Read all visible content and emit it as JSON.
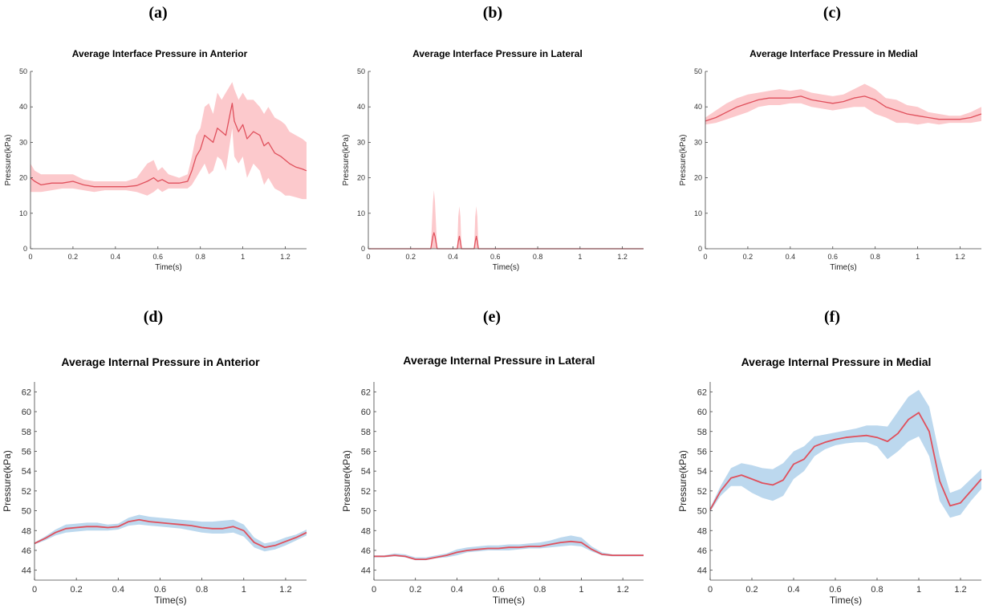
{
  "chart_data": [
    {
      "panel": "(a)",
      "type": "line",
      "title": "Average Interface Pressure in Anterior",
      "xlabel": "Time(s)",
      "ylabel": "Pressure(kPa)",
      "xlim": [
        0,
        1.3
      ],
      "ylim": [
        0,
        50
      ],
      "xticks": [
        "0",
        "0.2",
        "0.4",
        "0.6",
        "0.8",
        "1",
        "1.2"
      ],
      "yticks": [
        "0",
        "10",
        "20",
        "30",
        "40",
        "50"
      ],
      "colors": {
        "line": "#e0505c",
        "band": "#fcc9cc"
      },
      "series": [
        {
          "x": [
            0,
            0.02,
            0.05,
            0.1,
            0.15,
            0.2,
            0.25,
            0.3,
            0.35,
            0.4,
            0.45,
            0.5,
            0.55,
            0.58,
            0.6,
            0.62,
            0.65,
            0.7,
            0.74,
            0.76,
            0.78,
            0.8,
            0.82,
            0.84,
            0.86,
            0.88,
            0.9,
            0.92,
            0.94,
            0.95,
            0.96,
            0.98,
            1.0,
            1.02,
            1.05,
            1.08,
            1.1,
            1.12,
            1.15,
            1.18,
            1.2,
            1.22,
            1.25,
            1.28,
            1.3
          ],
          "values": [
            20,
            19,
            18,
            18.5,
            18.5,
            19,
            18,
            17.5,
            17.5,
            17.5,
            17.5,
            17.8,
            19,
            20,
            19,
            19.5,
            18.5,
            18.5,
            19,
            22,
            26,
            28,
            32,
            31,
            30,
            34,
            33,
            32,
            38,
            41,
            36,
            33,
            35,
            31,
            33,
            32,
            29,
            30,
            27,
            26,
            25,
            24,
            23,
            22.5,
            22
          ],
          "lower": [
            16,
            16,
            16,
            16.5,
            17,
            17,
            16.5,
            16,
            16.5,
            16.5,
            16.5,
            16,
            15,
            16,
            17,
            16,
            17,
            17,
            17,
            18,
            20,
            22,
            24,
            21,
            22,
            26,
            25,
            22,
            30,
            34,
            26,
            24,
            26,
            20,
            24,
            22,
            18,
            20,
            17,
            16,
            15,
            15,
            14.5,
            14,
            14
          ],
          "upper": [
            24,
            22,
            21,
            21,
            21,
            21,
            19.5,
            19,
            19,
            19,
            19,
            20,
            24,
            25,
            22,
            23,
            21,
            20,
            21,
            26,
            32,
            34,
            40,
            41,
            38,
            44,
            42,
            44,
            46,
            47,
            45,
            42,
            44,
            42,
            42,
            40,
            38,
            40,
            37,
            36,
            35,
            33,
            32,
            31,
            30
          ]
        }
      ]
    },
    {
      "panel": "(b)",
      "type": "line",
      "title": "Average Interface Pressure in Lateral",
      "xlabel": "Time(s)",
      "ylabel": "Pressure(kPa)",
      "xlim": [
        0,
        1.3
      ],
      "ylim": [
        0,
        50
      ],
      "xticks": [
        "0",
        "0.2",
        "0.4",
        "0.6",
        "0.8",
        "1",
        "1.2"
      ],
      "yticks": [
        "0",
        "10",
        "20",
        "30",
        "40",
        "50"
      ],
      "colors": {
        "line": "#e0505c",
        "band": "#fcc9cc"
      },
      "series": [
        {
          "x": [
            0,
            0.295,
            0.305,
            0.31,
            0.315,
            0.325,
            0.42,
            0.425,
            0.43,
            0.435,
            0.44,
            0.5,
            0.505,
            0.51,
            0.515,
            0.52,
            1.3
          ],
          "values": [
            0,
            0,
            3.5,
            4.5,
            3.5,
            0,
            0,
            2,
            3.5,
            2,
            0,
            0,
            2,
            3.5,
            2,
            0,
            0
          ],
          "lower": [
            0,
            0,
            0,
            0,
            0,
            0,
            0,
            0,
            0,
            0,
            0,
            0,
            0,
            0,
            0,
            0,
            0
          ],
          "upper": [
            0,
            0,
            13,
            16.5,
            13,
            0,
            0,
            9,
            12,
            9,
            0,
            0,
            9,
            12,
            9,
            0,
            0
          ]
        }
      ]
    },
    {
      "panel": "(c)",
      "type": "line",
      "title": "Average Interface Pressure in Medial",
      "xlabel": "Time(s)",
      "ylabel": "Pressure(kPa)",
      "xlim": [
        0,
        1.3
      ],
      "ylim": [
        0,
        50
      ],
      "xticks": [
        "0",
        "0.2",
        "0.4",
        "0.6",
        "0.8",
        "1",
        "1.2"
      ],
      "yticks": [
        "0",
        "10",
        "20",
        "30",
        "40",
        "50"
      ],
      "colors": {
        "line": "#e0505c",
        "band": "#fcc9cc"
      },
      "series": [
        {
          "x": [
            0,
            0.05,
            0.1,
            0.15,
            0.2,
            0.25,
            0.3,
            0.35,
            0.4,
            0.45,
            0.5,
            0.55,
            0.6,
            0.65,
            0.7,
            0.75,
            0.8,
            0.85,
            0.9,
            0.95,
            1.0,
            1.05,
            1.1,
            1.15,
            1.2,
            1.25,
            1.3
          ],
          "values": [
            36,
            37,
            38.5,
            40,
            41,
            42,
            42.5,
            42.5,
            42.5,
            43,
            42,
            41.5,
            41,
            41.5,
            42.5,
            43,
            42,
            40,
            39,
            38,
            37.5,
            37,
            36.5,
            36.5,
            36.5,
            37,
            38
          ],
          "lower": [
            35,
            35.5,
            36.5,
            37.5,
            38.5,
            40,
            40.5,
            40.5,
            41,
            41,
            40,
            39.5,
            39,
            39.5,
            40,
            40,
            38,
            37,
            35.5,
            35.5,
            35,
            35.5,
            35,
            35.5,
            35.5,
            35.5,
            36
          ],
          "upper": [
            37,
            39,
            41,
            42.5,
            43.5,
            44,
            44.5,
            45,
            44.5,
            45,
            44,
            43.5,
            43,
            43.5,
            45,
            46.5,
            45,
            42.5,
            42,
            40.5,
            40,
            38.5,
            38,
            37.5,
            37.5,
            38.5,
            40
          ]
        }
      ]
    },
    {
      "panel": "(d)",
      "type": "line",
      "title": "Average Internal Pressure in Anterior",
      "xlabel": "Time(s)",
      "ylabel": "Pressure(kPa)",
      "xlim": [
        0,
        1.3
      ],
      "ylim": [
        43,
        63
      ],
      "xticks": [
        "0",
        "0.2",
        "0.4",
        "0.6",
        "0.8",
        "1",
        "1.2"
      ],
      "yticks": [
        "44",
        "46",
        "48",
        "50",
        "52",
        "54",
        "56",
        "58",
        "60",
        "62"
      ],
      "colors": {
        "line": "#e0505c",
        "band": "#bcd8ee"
      },
      "series": [
        {
          "x": [
            0,
            0.05,
            0.1,
            0.15,
            0.2,
            0.25,
            0.3,
            0.35,
            0.4,
            0.45,
            0.5,
            0.55,
            0.6,
            0.65,
            0.7,
            0.75,
            0.8,
            0.85,
            0.9,
            0.95,
            1.0,
            1.05,
            1.1,
            1.15,
            1.2,
            1.25,
            1.3
          ],
          "values": [
            46.7,
            47.2,
            47.8,
            48.2,
            48.3,
            48.4,
            48.4,
            48.3,
            48.4,
            48.9,
            49.1,
            48.9,
            48.8,
            48.7,
            48.6,
            48.5,
            48.3,
            48.2,
            48.2,
            48.4,
            48.0,
            46.8,
            46.3,
            46.5,
            46.9,
            47.3,
            47.8
          ],
          "lower": [
            46.6,
            47.0,
            47.5,
            47.8,
            47.9,
            48.0,
            48.0,
            48.0,
            48.1,
            48.5,
            48.6,
            48.5,
            48.4,
            48.3,
            48.2,
            48.0,
            47.8,
            47.7,
            47.7,
            47.8,
            47.4,
            46.3,
            45.9,
            46.1,
            46.5,
            47.0,
            47.5
          ],
          "upper": [
            46.8,
            47.4,
            48.1,
            48.6,
            48.7,
            48.8,
            48.8,
            48.6,
            48.7,
            49.3,
            49.6,
            49.4,
            49.3,
            49.2,
            49.1,
            49.0,
            48.9,
            48.9,
            49.0,
            49.1,
            48.6,
            47.3,
            46.7,
            46.9,
            47.3,
            47.6,
            48.1
          ]
        }
      ]
    },
    {
      "panel": "(e)",
      "type": "line",
      "title": "Average Internal Pressure in Lateral",
      "xlabel": "Time(s)",
      "ylabel": "Pressure(kPa)",
      "xlim": [
        0,
        1.3
      ],
      "ylim": [
        43,
        63
      ],
      "xticks": [
        "0",
        "0.2",
        "0.4",
        "0.6",
        "0.8",
        "1",
        "1.2"
      ],
      "yticks": [
        "44",
        "46",
        "48",
        "50",
        "52",
        "54",
        "56",
        "58",
        "60",
        "62"
      ],
      "colors": {
        "line": "#e0505c",
        "band": "#bcd8ee"
      },
      "series": [
        {
          "x": [
            0,
            0.05,
            0.1,
            0.15,
            0.2,
            0.25,
            0.3,
            0.35,
            0.4,
            0.45,
            0.5,
            0.55,
            0.6,
            0.65,
            0.7,
            0.75,
            0.8,
            0.85,
            0.9,
            0.95,
            1.0,
            1.05,
            1.1,
            1.15,
            1.2,
            1.25,
            1.3
          ],
          "values": [
            45.4,
            45.4,
            45.5,
            45.4,
            45.1,
            45.1,
            45.3,
            45.5,
            45.8,
            46.0,
            46.1,
            46.2,
            46.2,
            46.3,
            46.3,
            46.4,
            46.4,
            46.6,
            46.8,
            46.9,
            46.8,
            46.1,
            45.6,
            45.5,
            45.5,
            45.5,
            45.5
          ],
          "lower": [
            45.3,
            45.3,
            45.4,
            45.3,
            45.0,
            45.0,
            45.2,
            45.3,
            45.5,
            45.8,
            45.9,
            46.0,
            46.0,
            46.0,
            46.1,
            46.2,
            46.2,
            46.3,
            46.4,
            46.5,
            46.4,
            45.9,
            45.5,
            45.4,
            45.4,
            45.4,
            45.4
          ],
          "upper": [
            45.5,
            45.5,
            45.7,
            45.6,
            45.3,
            45.3,
            45.5,
            45.7,
            46.1,
            46.3,
            46.4,
            46.5,
            46.5,
            46.6,
            46.6,
            46.7,
            46.8,
            47.0,
            47.3,
            47.5,
            47.3,
            46.4,
            45.8,
            45.6,
            45.6,
            45.6,
            45.6
          ]
        }
      ]
    },
    {
      "panel": "(f)",
      "type": "line",
      "title": "Average Internal Pressure in Medial",
      "xlabel": "Time(s)",
      "ylabel": "Pressure(kPa)",
      "xlim": [
        0,
        1.3
      ],
      "ylim": [
        43,
        63
      ],
      "xticks": [
        "0",
        "0.2",
        "0.4",
        "0.6",
        "0.8",
        "1",
        "1.2"
      ],
      "yticks": [
        "44",
        "46",
        "48",
        "50",
        "52",
        "54",
        "56",
        "58",
        "60",
        "62"
      ],
      "colors": {
        "line": "#e0505c",
        "band": "#bcd8ee"
      },
      "series": [
        {
          "x": [
            0,
            0.05,
            0.1,
            0.15,
            0.2,
            0.25,
            0.3,
            0.35,
            0.4,
            0.45,
            0.5,
            0.55,
            0.6,
            0.65,
            0.7,
            0.75,
            0.8,
            0.85,
            0.9,
            0.95,
            1.0,
            1.05,
            1.1,
            1.15,
            1.2,
            1.25,
            1.3
          ],
          "values": [
            50.1,
            52.0,
            53.3,
            53.6,
            53.2,
            52.8,
            52.6,
            53.1,
            54.7,
            55.2,
            56.5,
            56.9,
            57.2,
            57.4,
            57.5,
            57.6,
            57.4,
            57.0,
            57.8,
            59.2,
            59.9,
            58.0,
            53.0,
            50.5,
            50.8,
            52.0,
            53.2
          ],
          "lower": [
            49.9,
            51.5,
            52.5,
            52.5,
            51.8,
            51.3,
            51.0,
            51.5,
            53.2,
            54.0,
            55.5,
            56.2,
            56.6,
            56.8,
            56.9,
            56.9,
            56.5,
            55.2,
            56.0,
            57.0,
            57.5,
            55.5,
            51.0,
            49.3,
            49.6,
            51.0,
            52.2
          ],
          "upper": [
            50.3,
            52.5,
            54.3,
            54.8,
            54.6,
            54.3,
            54.2,
            54.8,
            56.0,
            56.5,
            57.5,
            57.7,
            57.9,
            58.1,
            58.3,
            58.6,
            58.6,
            58.5,
            60.0,
            61.5,
            62.2,
            60.5,
            55.5,
            51.8,
            52.2,
            53.2,
            54.2
          ]
        }
      ]
    }
  ]
}
